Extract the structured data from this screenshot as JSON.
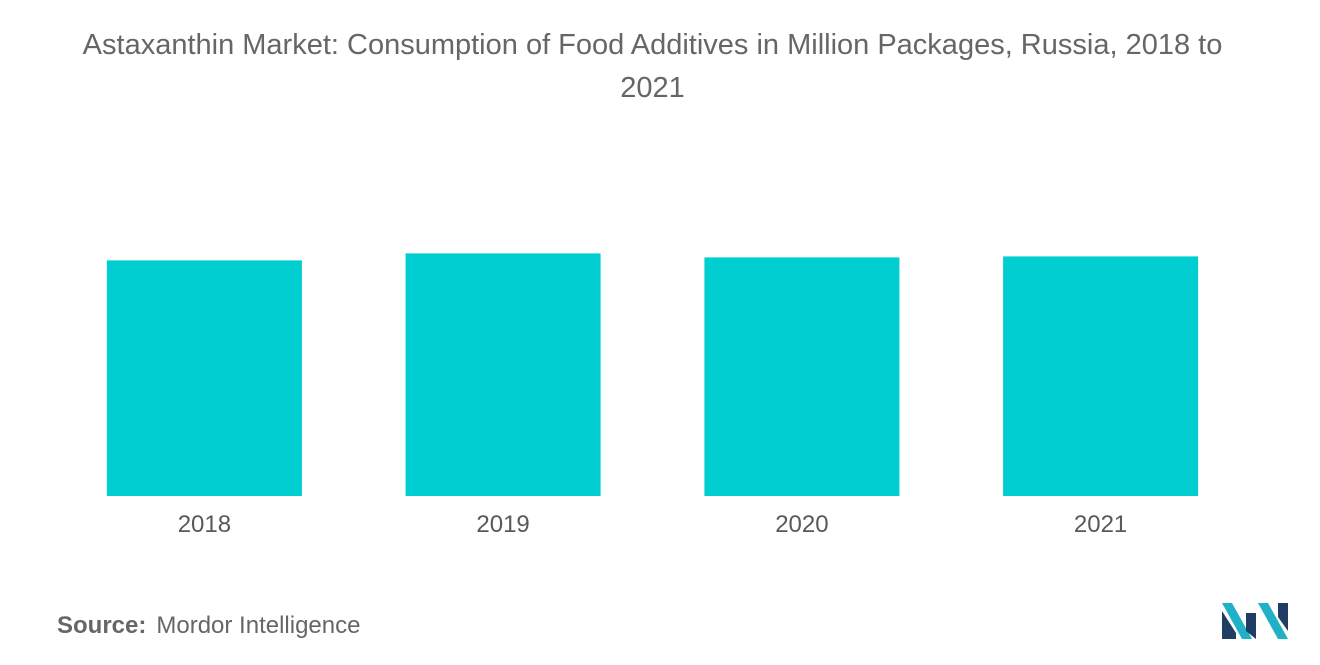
{
  "chart_data": {
    "type": "bar",
    "title_line1": "Astaxanthin Market: Consumption of Food Additives in Million Packages, Russia, 2018 to",
    "title_line2": "2021",
    "categories": [
      "2018",
      "2019",
      "2020",
      "2021"
    ],
    "values": [
      234,
      241,
      237,
      238
    ],
    "ylim": [
      0,
      300
    ],
    "bar_color": "#00CED1",
    "grid": false,
    "legend": "none"
  },
  "footer": {
    "source_label": "Source:",
    "source_value": "Mordor Intelligence"
  },
  "logo": {
    "icon": "mordor-intelligence-logo-icon",
    "colors": [
      "#1F3E63",
      "#1FB2C7"
    ]
  }
}
